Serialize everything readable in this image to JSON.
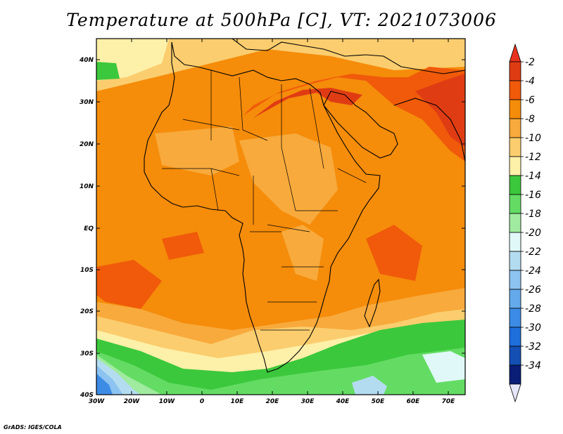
{
  "title": "Temperature at 500hPa [C], VT: 2021073006",
  "credit": "GrADS: IGES/COLA",
  "lat_labels": [
    "40N",
    "30N",
    "20N",
    "10N",
    "EQ",
    "10S",
    "20S",
    "30S",
    "40S"
  ],
  "lon_labels": [
    "30W",
    "20W",
    "10W",
    "0",
    "10E",
    "20E",
    "30E",
    "40E",
    "50E",
    "60E",
    "70E"
  ],
  "colorbar": {
    "labels": [
      "-2",
      "-4",
      "-6",
      "-8",
      "-10",
      "-12",
      "-14",
      "-16",
      "-18",
      "-20",
      "-22",
      "-24",
      "-26",
      "-28",
      "-30",
      "-32",
      "-34"
    ],
    "colors": [
      "#e03c14",
      "#f05a0a",
      "#f58c0a",
      "#f8aa3c",
      "#fbcd6e",
      "#fdf0a8",
      "#3cc83c",
      "#64dc64",
      "#a0eba0",
      "#e0f8f8",
      "#b4dcf0",
      "#8cc3f0",
      "#64aaeb",
      "#3c8ce6",
      "#1e6edc",
      "#1450b4",
      "#0a1e78"
    ],
    "top_arrow_color": "#e6321e",
    "bottom_arrow_color": "#e6e6fa"
  }
}
